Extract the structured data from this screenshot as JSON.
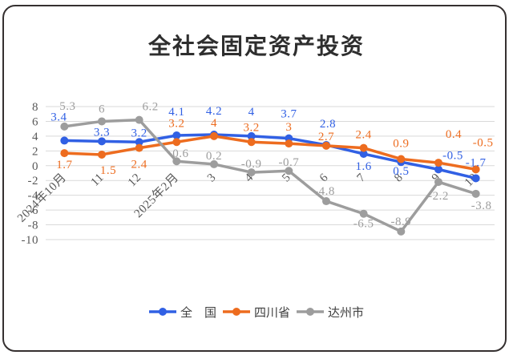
{
  "chart_data": {
    "type": "line",
    "title": "全社会固定资产投资",
    "categories": [
      "2024年10月",
      "11",
      "12",
      "2025年2月",
      "3",
      "4",
      "5",
      "6",
      "7",
      "8",
      "9",
      "10"
    ],
    "series": [
      {
        "key": "national",
        "name": "全　国",
        "color": "#3160E4",
        "values": [
          3.4,
          3.3,
          3.2,
          4.1,
          4.2,
          4,
          3.7,
          2.8,
          1.6,
          0.5,
          -0.5,
          -1.7
        ],
        "label_dx": [
          -7,
          0,
          0,
          0,
          0,
          0,
          0,
          2,
          0,
          0,
          18,
          0
        ],
        "label_dy": [
          -25,
          -7,
          -7,
          -25,
          -25,
          -26,
          -26,
          -22,
          20,
          16,
          -13,
          -15
        ]
      },
      {
        "key": "sichuan",
        "name": "四川省",
        "color": "#ED6C1F",
        "values": [
          1.7,
          1.5,
          2.4,
          3.2,
          4,
          3.2,
          3,
          2.7,
          2.4,
          0.9,
          0.4,
          -0.5
        ],
        "label_dx": [
          0,
          8,
          0,
          0,
          0,
          0,
          0,
          0,
          0,
          0,
          19,
          9
        ],
        "label_dy": [
          19,
          24,
          25,
          -19,
          -12,
          -14,
          -16,
          -7,
          -12,
          -15,
          -31,
          -29
        ]
      },
      {
        "key": "dazhou",
        "name": "达州市",
        "color": "#9D9D9D",
        "values": [
          5.3,
          6,
          6.2,
          0.6,
          0.2,
          -0.9,
          -0.7,
          -4.8,
          -6.5,
          -8.9,
          -2.2,
          -3.8
        ],
        "label_dx": [
          4,
          0,
          14,
          5,
          0,
          0,
          0,
          -2,
          0,
          0,
          0,
          7
        ],
        "label_dy": [
          -21,
          -11,
          -12,
          -5,
          -6,
          -6,
          -6,
          -8,
          17,
          -8,
          22,
          19
        ]
      }
    ],
    "ylim": [
      -10,
      8
    ],
    "ytick_step": 2,
    "yticks": [
      "8",
      "6",
      "4",
      "2",
      "0",
      "-2",
      "-4",
      "-6",
      "-8",
      "-10"
    ],
    "grid": "horizontal",
    "legend_position": "bottom",
    "colors": {
      "gridline": "#D9D9D9",
      "axis_text": "#595959",
      "title_text": "#2E2E2E",
      "legend_text": "#404040",
      "frame_border": "#353030",
      "background": "#FFFFFF"
    }
  }
}
